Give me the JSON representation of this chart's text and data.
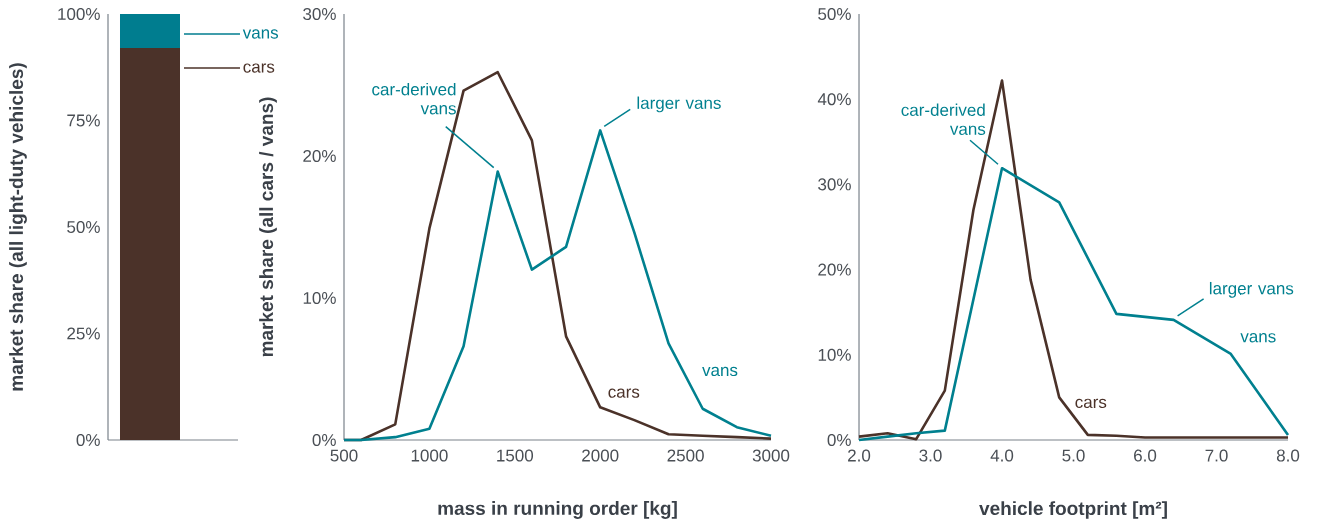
{
  "chart_data": [
    {
      "type": "bar",
      "stacked": true,
      "ylabel": "market share (all light-duty vehicles)",
      "categories": [
        null
      ],
      "tick_labels": "y",
      "legend": "top right",
      "series": [
        {
          "name": "cars",
          "color": "#4b3229",
          "values": [
            92
          ]
        },
        {
          "name": "vans",
          "color": "#007d8f",
          "values": [
            8
          ]
        }
      ],
      "ylim": [
        0,
        100
      ],
      "yticks": [
        {
          "value": 0,
          "label": "0%"
        },
        {
          "value": 25,
          "label": "25%"
        },
        {
          "value": 50,
          "label": "50%"
        },
        {
          "value": 75,
          "label": "75%"
        },
        {
          "value": 100,
          "label": "100%"
        }
      ]
    },
    {
      "type": "line",
      "xlabel": "mass in running order [kg]",
      "ylabel": "market share (all cars / vans)",
      "x": [
        500,
        600,
        800,
        1000,
        1200,
        1400,
        1600,
        1800,
        2000,
        2200,
        2400,
        2600,
        2800,
        3000
      ],
      "series": [
        {
          "name": "cars",
          "color": "#4b3229",
          "values": [
            0,
            0,
            1.1,
            14.9,
            24.6,
            25.9,
            21.1,
            7.3,
            2.3,
            1.4,
            0.4,
            0.3,
            0.2,
            0.1
          ]
        },
        {
          "name": "vans",
          "color": "#00808f",
          "values": [
            0,
            0,
            0.2,
            0.8,
            6.6,
            18.9,
            12.0,
            13.6,
            21.8,
            14.6,
            6.8,
            2.2,
            0.9,
            0.3
          ]
        }
      ],
      "annotations": [
        {
          "text": "car-derived vans",
          "x": 1400,
          "y": 18.9
        },
        {
          "text": "larger vans",
          "x": 2000,
          "y": 21.8
        }
      ],
      "xlim": [
        500,
        3000
      ],
      "xticks": [
        500,
        1000,
        1500,
        2000,
        2500,
        3000
      ],
      "ylim": [
        0,
        30
      ],
      "yticks": [
        {
          "value": 0,
          "label": "0%"
        },
        {
          "value": 10,
          "label": "10%"
        },
        {
          "value": 20,
          "label": "20%"
        },
        {
          "value": 30,
          "label": "30%"
        }
      ]
    },
    {
      "type": "line",
      "xlabel": "vehicle footprint [m²]",
      "series": [
        {
          "name": "cars",
          "color": "#4b3229",
          "x": [
            2.0,
            2.4,
            2.8,
            3.2,
            3.6,
            4.0,
            4.4,
            4.8,
            5.2,
            5.6,
            6.0,
            6.4,
            6.8,
            7.2,
            7.6,
            8.0
          ],
          "values": [
            0.4,
            0.8,
            0.1,
            5.8,
            27,
            42.2,
            18.8,
            5.0,
            0.6,
            0.5,
            0.3,
            0.3,
            0.3,
            0.3,
            0.3,
            0.3
          ]
        },
        {
          "name": "vans",
          "color": "#00808f",
          "x": [
            2.0,
            2.4,
            2.8,
            3.2,
            4.0,
            4.8,
            5.6,
            6.4,
            7.2,
            8.0
          ],
          "values": [
            0,
            0.4,
            0.8,
            1.1,
            31.9,
            27.9,
            14.8,
            14.1,
            10.1,
            0.6
          ]
        }
      ],
      "annotations": [
        {
          "text": "car-derived vans",
          "x": 4.0,
          "y": 31.9
        },
        {
          "text": "larger vans",
          "x": 6.4,
          "y": 14.1
        }
      ],
      "xlim": [
        2,
        8
      ],
      "xticks": [
        {
          "value": 2,
          "label": "2.0"
        },
        {
          "value": 3,
          "label": "3.0"
        },
        {
          "value": 4,
          "label": "4.0"
        },
        {
          "value": 5,
          "label": "5.0"
        },
        {
          "value": 6,
          "label": "6.0"
        },
        {
          "value": 7,
          "label": "7.0"
        },
        {
          "value": 8,
          "label": "8.0"
        }
      ],
      "ylim": [
        0,
        50
      ],
      "yticks": [
        {
          "value": 0,
          "label": "0%"
        },
        {
          "value": 10,
          "label": "10%"
        },
        {
          "value": 20,
          "label": "20%"
        },
        {
          "value": 30,
          "label": "30%"
        },
        {
          "value": 40,
          "label": "40%"
        },
        {
          "value": 50,
          "label": "50%"
        }
      ]
    }
  ]
}
